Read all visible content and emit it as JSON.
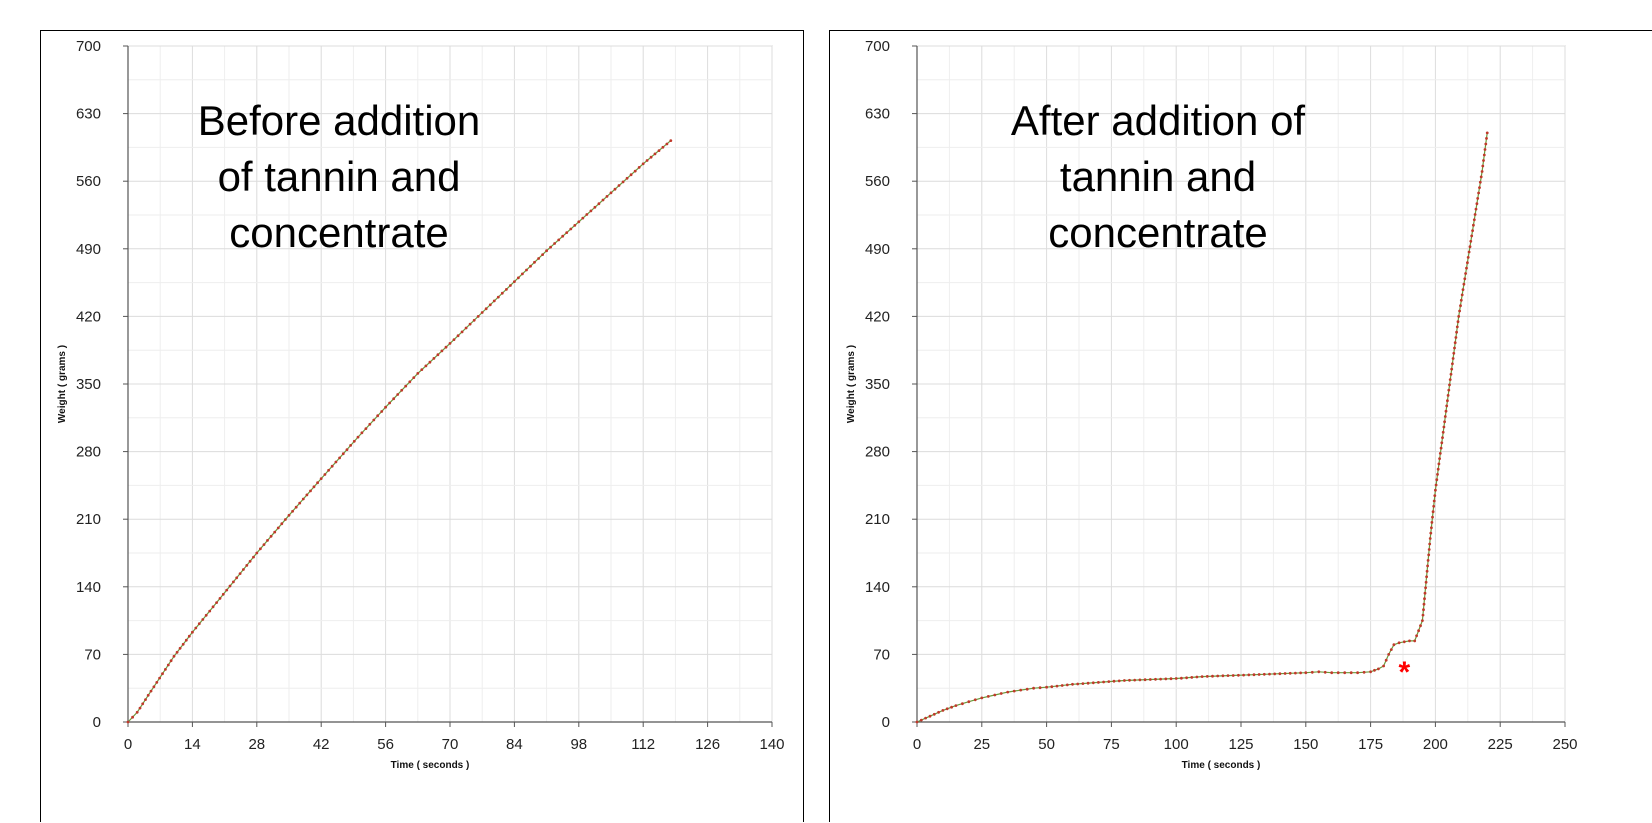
{
  "chart_data": [
    {
      "type": "scatter",
      "title": "",
      "annotation_lines": [
        "Before addition",
        "of tannin and",
        "concentrate"
      ],
      "xlabel": "Time ( seconds )",
      "ylabel": "Weight ( grams )",
      "xlim": [
        0,
        140
      ],
      "ylim": [
        0,
        700
      ],
      "xticks": [
        0,
        14,
        28,
        42,
        56,
        70,
        84,
        98,
        112,
        126,
        140
      ],
      "yticks": [
        0,
        70,
        140,
        210,
        280,
        350,
        420,
        490,
        560,
        630,
        700
      ],
      "grid": true,
      "point_color": "#c0392b",
      "line_color": "#6a9a3a",
      "series": [
        {
          "x": [
            0,
            2,
            5,
            10,
            14,
            20,
            28,
            35,
            42,
            50,
            56,
            63,
            70,
            77,
            84,
            91,
            98,
            105,
            112,
            118
          ],
          "y": [
            0,
            10,
            32,
            68,
            93,
            128,
            175,
            214,
            252,
            295,
            326,
            361,
            392,
            424,
            456,
            488,
            518,
            548,
            578,
            602
          ]
        }
      ]
    },
    {
      "type": "scatter",
      "title": "",
      "annotation_lines": [
        "After addition of",
        "tannin and",
        "concentrate"
      ],
      "marker_label": "*",
      "marker_at": [
        188,
        60
      ],
      "xlabel": "Time ( seconds )",
      "ylabel": "Weight ( grams )",
      "xlim": [
        0,
        250
      ],
      "ylim": [
        0,
        700
      ],
      "xticks": [
        0,
        25,
        50,
        75,
        100,
        125,
        150,
        175,
        200,
        225,
        250
      ],
      "yticks": [
        0,
        70,
        140,
        210,
        280,
        350,
        420,
        490,
        560,
        630,
        700
      ],
      "grid": true,
      "point_color": "#c0392b",
      "line_color": "#6a9a3a",
      "series": [
        {
          "x": [
            0,
            5,
            10,
            15,
            20,
            25,
            30,
            35,
            40,
            45,
            50,
            60,
            70,
            80,
            90,
            100,
            110,
            120,
            130,
            140,
            150,
            155,
            160,
            165,
            170,
            175,
            178,
            180,
            182,
            184,
            186,
            188,
            190,
            192,
            195,
            198,
            200,
            203,
            206,
            209,
            212,
            215,
            218,
            220
          ],
          "y": [
            0,
            6,
            12,
            17,
            21,
            25,
            28,
            31,
            33,
            35,
            36,
            39,
            41,
            43,
            44,
            45,
            47,
            48,
            49,
            50,
            51,
            52,
            51,
            51,
            51,
            52,
            55,
            58,
            70,
            80,
            82,
            83,
            84,
            84,
            105,
            190,
            240,
            300,
            360,
            420,
            470,
            520,
            570,
            610
          ]
        }
      ]
    }
  ]
}
